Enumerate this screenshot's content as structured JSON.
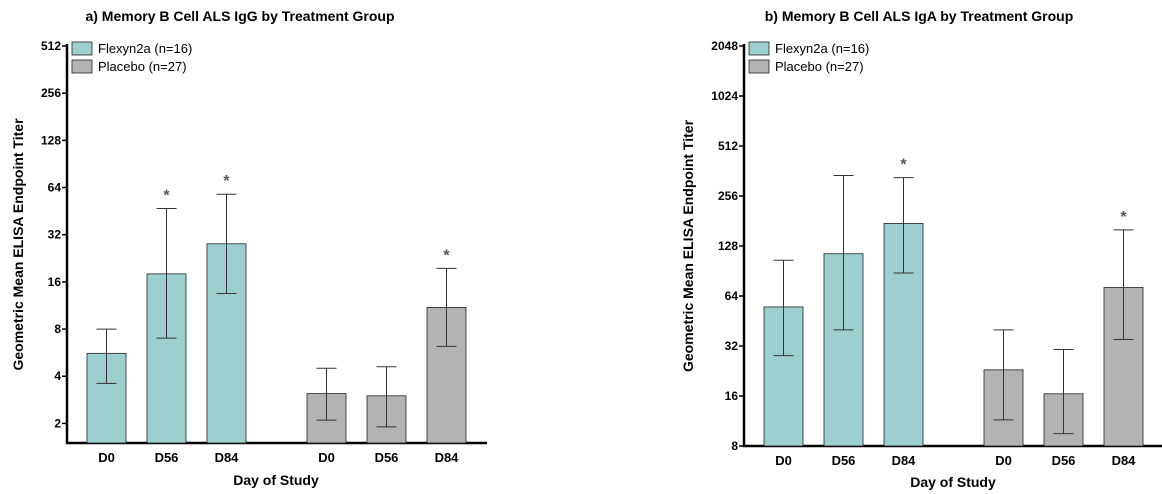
{
  "colors": {
    "flexyn": "#9dcfcf",
    "placebo": "#b3b3b3",
    "axis": "#000000",
    "error": "#333333",
    "star": "#555555"
  },
  "chart_data": [
    {
      "type": "bar",
      "title": "a) Memory B Cell ALS IgG by Treatment Group",
      "xlabel": "Day of Study",
      "ylabel": "Geometric Mean ELISA Endpoint Titer",
      "yscale": "log2",
      "ylim": [
        1.5,
        512
      ],
      "yticks": [
        "2",
        "4",
        "8",
        "16",
        "32",
        "64",
        "128",
        "256",
        "512"
      ],
      "legend": "top-left",
      "series": [
        {
          "name": "Flexyn2a (n=16)",
          "color": "#9dcfcf",
          "categories": [
            "D0",
            "D56",
            "D84"
          ],
          "values": [
            5.6,
            18,
            28
          ],
          "error_low": [
            3.6,
            7,
            13.5
          ],
          "error_high": [
            8,
            47,
            58
          ],
          "significant": [
            false,
            true,
            true
          ]
        },
        {
          "name": "Placebo (n=27)",
          "color": "#b3b3b3",
          "categories": [
            "D0",
            "D56",
            "D84"
          ],
          "values": [
            3.1,
            3.0,
            11
          ],
          "error_low": [
            2.1,
            1.9,
            6.2
          ],
          "error_high": [
            4.5,
            4.6,
            19.5
          ],
          "significant": [
            false,
            false,
            true
          ]
        }
      ]
    },
    {
      "type": "bar",
      "title": "b) Memory B Cell ALS IgA by Treatment Group",
      "xlabel": "Day of Study",
      "ylabel": "Geometric Mean ELISA Endpoint Titer",
      "yscale": "log2",
      "ylim": [
        8,
        2048
      ],
      "yticks": [
        "8",
        "16",
        "32",
        "64",
        "128",
        "256",
        "512",
        "1024",
        "2048"
      ],
      "legend": "top-left",
      "series": [
        {
          "name": "Flexyn2a (n=16)",
          "color": "#9dcfcf",
          "categories": [
            "D0",
            "D56",
            "D84"
          ],
          "values": [
            55,
            115,
            175
          ],
          "error_low": [
            28,
            40,
            88
          ],
          "error_high": [
            105,
            340,
            330
          ],
          "significant": [
            false,
            false,
            true
          ]
        },
        {
          "name": "Placebo (n=27)",
          "color": "#b3b3b3",
          "categories": [
            "D0",
            "D56",
            "D84"
          ],
          "values": [
            23,
            16.5,
            72
          ],
          "error_low": [
            11.5,
            9.5,
            35
          ],
          "error_high": [
            40,
            30.5,
            160
          ],
          "significant": [
            false,
            false,
            true
          ]
        }
      ]
    }
  ],
  "significance_marker": "*"
}
